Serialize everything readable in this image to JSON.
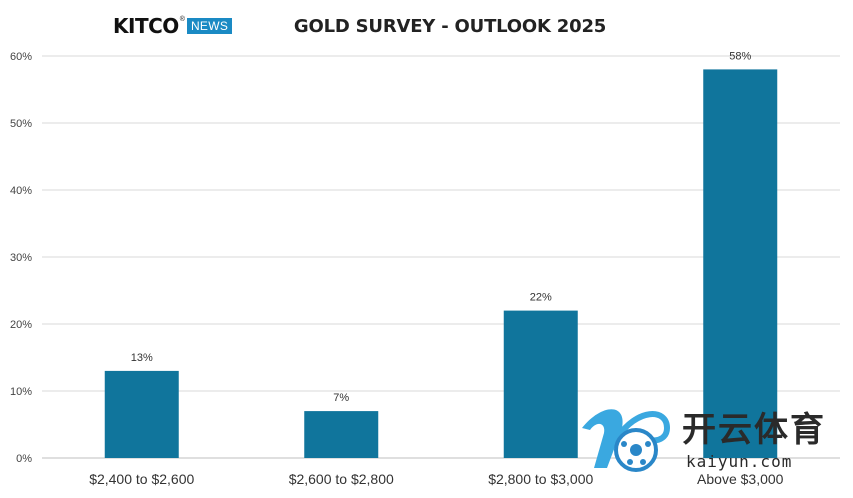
{
  "logo": {
    "brand": "KITCO",
    "reg": "®",
    "badge": "NEWS"
  },
  "chart_data": {
    "type": "bar",
    "title": "GOLD SURVEY - OUTLOOK 2025",
    "categories": [
      "$2,400 to $2,600",
      "$2,600 to $2,800",
      "$2,800 to $3,000",
      "Above $3,000"
    ],
    "values": [
      13,
      7,
      22,
      58
    ],
    "value_labels": [
      "13%",
      "7%",
      "22%",
      "58%"
    ],
    "yticks": [
      "0%",
      "10%",
      "20%",
      "30%",
      "40%",
      "50%",
      "60%"
    ],
    "ylim": [
      0,
      60
    ],
    "xlabel": "",
    "ylabel": "",
    "grid": true,
    "bar_color": "#10759c"
  },
  "watermark": {
    "cn": "开云体育",
    "en": "kaiyun.com"
  }
}
